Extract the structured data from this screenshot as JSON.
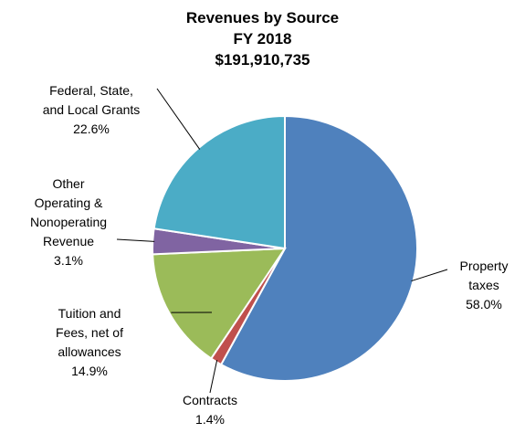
{
  "chart_data": {
    "type": "pie",
    "title": "Revenues by Source",
    "subtitle": [
      "FY 2018",
      "$191,910,735"
    ],
    "categories": [
      "Property taxes",
      "Contracts",
      "Tuition and Fees, net of allowances",
      "Other Operating & Nonoperating Revenue",
      "Federal, State, and Local Grants"
    ],
    "values": [
      58.0,
      1.4,
      14.9,
      3.1,
      22.6
    ],
    "value_labels": [
      "58.0%",
      "1.4%",
      "14.9%",
      "3.1%",
      "22.6%"
    ],
    "colors": [
      "#4f81bd",
      "#c0504d",
      "#9bbb59",
      "#8064a2",
      "#4bacc6"
    ]
  }
}
